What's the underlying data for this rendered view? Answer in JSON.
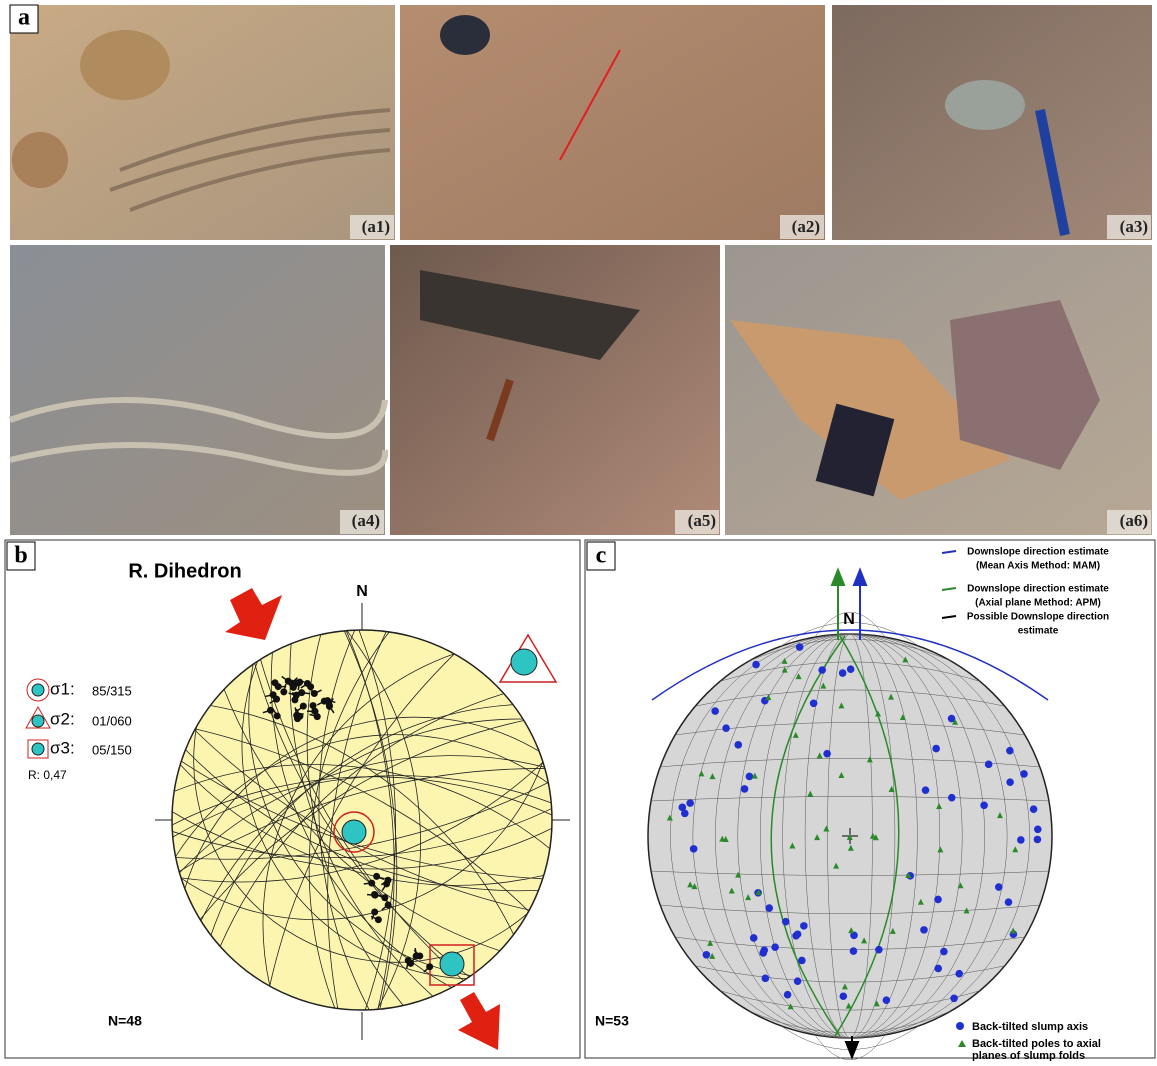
{
  "figure": {
    "label": "a",
    "photos": [
      {
        "label": "(a1)"
      },
      {
        "label": "(a2)"
      },
      {
        "label": "(a3)"
      },
      {
        "label": "(a4)"
      },
      {
        "label": "(a5)"
      },
      {
        "label": "(a6)"
      }
    ]
  },
  "panel_b": {
    "label": "b",
    "title": "R. Dihedron",
    "north": "N",
    "legend": [
      {
        "symbol": "σ1:",
        "value": "85/315"
      },
      {
        "symbol": "σ2:",
        "value": "01/060"
      },
      {
        "symbol": "σ3:",
        "value": "05/150"
      }
    ],
    "ratio": "R: 0,47",
    "count": "N=48"
  },
  "panel_c": {
    "label": "c",
    "north": "N",
    "legend": [
      {
        "lines": [
          "Downslope direction estimate",
          "(Mean Axis Method: MAM)"
        ]
      },
      {
        "lines": [
          "Downslope direction estimate",
          "(Axial plane Method: APM)"
        ]
      },
      {
        "lines": [
          "Possible Downslope direction",
          "estimate"
        ]
      }
    ],
    "count": "N=53",
    "markers": [
      {
        "lines": [
          "Back-tilted slump axis"
        ]
      },
      {
        "lines": [
          "Back-tilted poles to axial",
          "planes of slump folds"
        ]
      }
    ]
  }
}
